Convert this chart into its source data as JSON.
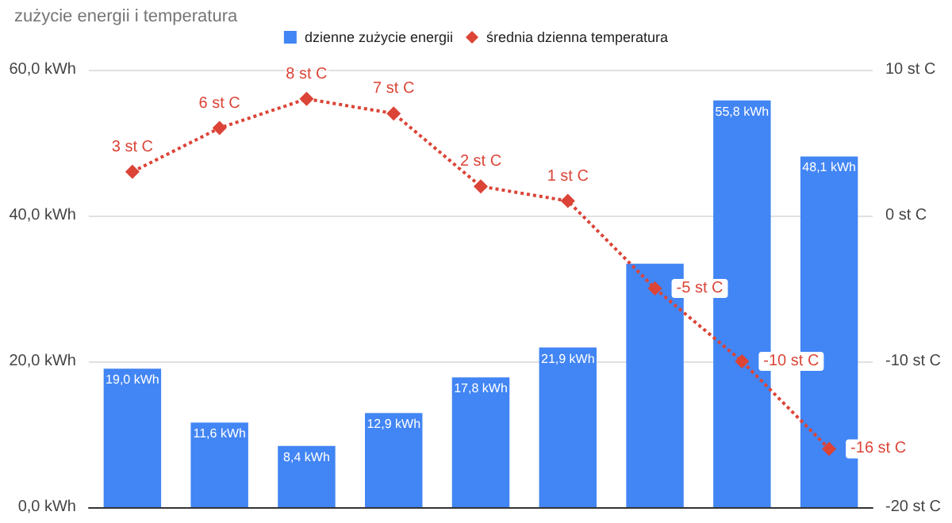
{
  "chart_data": {
    "type": "bar",
    "title": "zużycie energii i temperatura",
    "categories": [
      null,
      null,
      null,
      null,
      null,
      null,
      null,
      null,
      null
    ],
    "series": [
      {
        "name": "dzienne zużycie energii",
        "color": "#4285f4",
        "values": [
          19.0,
          11.6,
          8.4,
          12.9,
          17.8,
          21.9,
          33.4,
          55.8,
          48.1
        ],
        "value_labels": [
          "19,0 kWh",
          "11,6 kWh",
          "8,4 kWh",
          "12,9 kWh",
          "17,8 kWh",
          "21,9 kWh",
          null,
          "55,8 kWh",
          "48,1 kWh"
        ]
      },
      {
        "name": "średnia dzienna temperatura",
        "type": "line",
        "axis": "y2",
        "color": "#db4437",
        "marker": "diamond",
        "line_style": "dotted",
        "values": [
          3,
          6,
          8,
          7,
          2,
          1,
          -5,
          -10,
          -16
        ],
        "value_labels": [
          "3 st C",
          "6 st C",
          "8 st C",
          "7 st C",
          "2 st C",
          "1 st C",
          "-5 st C",
          "-10 st C",
          "-16 st C"
        ]
      }
    ],
    "ylim": [
      0,
      60
    ],
    "yticks": [
      {
        "value": 0,
        "label": "0,0 kWh"
      },
      {
        "value": 20,
        "label": "20,0 kWh"
      },
      {
        "value": 40,
        "label": "40,0 kWh"
      },
      {
        "value": 60,
        "label": "60,0 kWh"
      }
    ],
    "y2lim": [
      -20,
      10
    ],
    "y2ticks": [
      {
        "value": -20,
        "label": "-20 st C"
      },
      {
        "value": -10,
        "label": "-10 st C"
      },
      {
        "value": 0,
        "label": "0 st C"
      },
      {
        "value": 10,
        "label": "10 st C"
      }
    ],
    "grid": "y",
    "legend": "top"
  }
}
